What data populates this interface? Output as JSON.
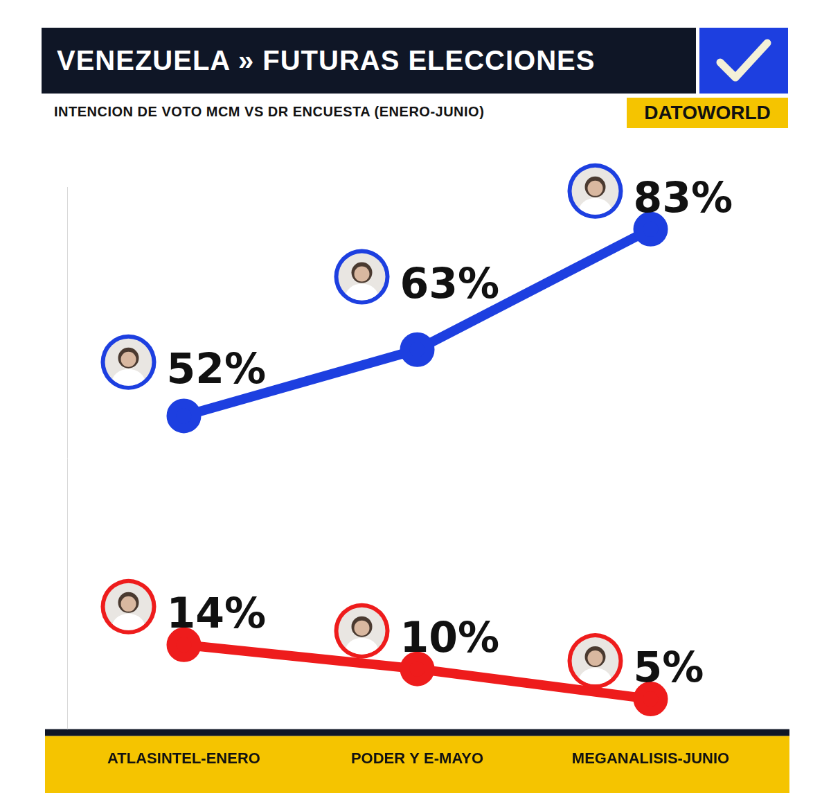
{
  "chart_data": {
    "type": "line",
    "title": "VENEZUELA » FUTURAS ELECCIONES",
    "subtitle": "INTENCION DE VOTO MCM VS DR ENCUESTA (ENERO-JUNIO)",
    "brand": "DATOWORLD",
    "categories": [
      "ATLASINTEL-ENERO",
      "PODER Y E-MAYO",
      "MEGANALISIS-JUNIO"
    ],
    "series": [
      {
        "color": "#1d3fe0",
        "values": [
          52,
          63,
          83
        ],
        "value_labels": [
          "52%",
          "63%",
          "83%"
        ]
      },
      {
        "color": "#ee1c1c",
        "values": [
          14,
          10,
          5
        ],
        "value_labels": [
          "14%",
          "10%",
          "5%"
        ]
      }
    ],
    "ylim": [
      0,
      90
    ],
    "tick_labels": "x",
    "grid": false,
    "data_labels": true,
    "marker": "circle"
  }
}
